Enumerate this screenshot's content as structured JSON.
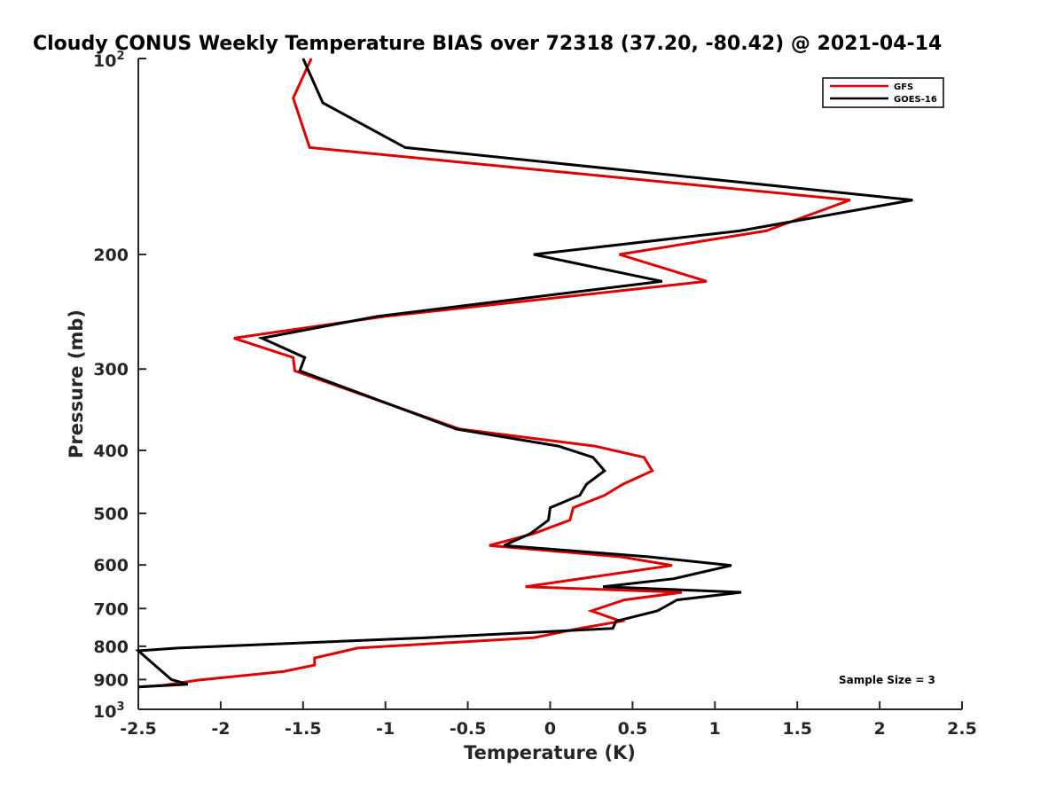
{
  "chart_data": {
    "type": "line",
    "title": "Cloudy CONUS Weekly Temperature BIAS over 72318 (37.20, -80.42) @ 2021-04-14",
    "xlabel": "Temperature (K)",
    "ylabel": "Pressure (mb)",
    "xlim": [
      -2.5,
      2.5
    ],
    "ylim": [
      100,
      1000
    ],
    "yscale": "log",
    "y_reversed": true,
    "x_ticks": [
      -2.5,
      -2,
      -1.5,
      -1,
      -0.5,
      0,
      0.5,
      1,
      1.5,
      2,
      2.5
    ],
    "x_tick_labels": [
      "-2.5",
      "-2",
      "-1.5",
      "-1",
      "-0.5",
      "0",
      "0.5",
      "1",
      "1.5",
      "2",
      "2.5"
    ],
    "y_ticks": [
      200,
      300,
      400,
      500,
      600,
      700,
      800,
      900
    ],
    "y_tick_labels": [
      "200",
      "300",
      "400",
      "500",
      "600",
      "700",
      "800",
      "900"
    ],
    "y_top_label": {
      "base": "10",
      "exp": "2"
    },
    "y_bottom_label": {
      "base": "10",
      "exp": "3"
    },
    "legend_position": "top-right",
    "annotation": "Sample Size = 3",
    "series": [
      {
        "name": "GFS",
        "color": "#e00000",
        "points": [
          [
            -1.45,
            100
          ],
          [
            -1.56,
            115
          ],
          [
            -1.46,
            137
          ],
          [
            1.82,
            165
          ],
          [
            1.31,
            184
          ],
          [
            0.42,
            200
          ],
          [
            0.95,
            220
          ],
          [
            -1.0,
            249
          ],
          [
            -1.92,
            269
          ],
          [
            -1.56,
            288
          ],
          [
            -1.55,
            302
          ],
          [
            -0.55,
            371
          ],
          [
            0.27,
            394
          ],
          [
            0.57,
            410
          ],
          [
            0.62,
            430
          ],
          [
            0.44,
            451
          ],
          [
            0.33,
            469
          ],
          [
            0.14,
            490
          ],
          [
            0.12,
            512
          ],
          [
            -0.1,
            537
          ],
          [
            -0.37,
            560
          ],
          [
            0.43,
            583
          ],
          [
            0.74,
            601
          ],
          [
            -0.15,
            648
          ],
          [
            0.8,
            661
          ],
          [
            0.45,
            679
          ],
          [
            0.25,
            706
          ],
          [
            0.43,
            732
          ],
          [
            0.18,
            751
          ],
          [
            -0.1,
            776
          ],
          [
            -1.17,
            805
          ],
          [
            -1.43,
            834
          ],
          [
            -1.43,
            855
          ],
          [
            -1.62,
            875
          ],
          [
            -2.14,
            902
          ],
          [
            -2.34,
            918
          ],
          [
            -2.5,
            924
          ]
        ]
      },
      {
        "name": "GOES-16",
        "color": "#000000",
        "points": [
          [
            -1.5,
            100
          ],
          [
            -1.38,
            117
          ],
          [
            -0.88,
            137
          ],
          [
            2.2,
            165
          ],
          [
            1.15,
            184
          ],
          [
            -0.1,
            200
          ],
          [
            0.68,
            220
          ],
          [
            -1.05,
            249
          ],
          [
            -1.75,
            269
          ],
          [
            -1.49,
            288
          ],
          [
            -1.52,
            302
          ],
          [
            -0.57,
            371
          ],
          [
            0.05,
            394
          ],
          [
            0.26,
            410
          ],
          [
            0.33,
            430
          ],
          [
            0.22,
            451
          ],
          [
            0.18,
            469
          ],
          [
            0.0,
            490
          ],
          [
            -0.01,
            512
          ],
          [
            -0.12,
            537
          ],
          [
            -0.28,
            560
          ],
          [
            0.6,
            583
          ],
          [
            1.1,
            601
          ],
          [
            0.75,
            630
          ],
          [
            0.32,
            648
          ],
          [
            1.16,
            661
          ],
          [
            0.77,
            679
          ],
          [
            0.65,
            706
          ],
          [
            0.4,
            732
          ],
          [
            0.38,
            751
          ],
          [
            -0.75,
            776
          ],
          [
            -2.26,
            805
          ],
          [
            -2.5,
            813
          ],
          [
            -2.3,
            900
          ],
          [
            -2.2,
            915
          ],
          [
            -2.5,
            924
          ]
        ]
      }
    ]
  }
}
